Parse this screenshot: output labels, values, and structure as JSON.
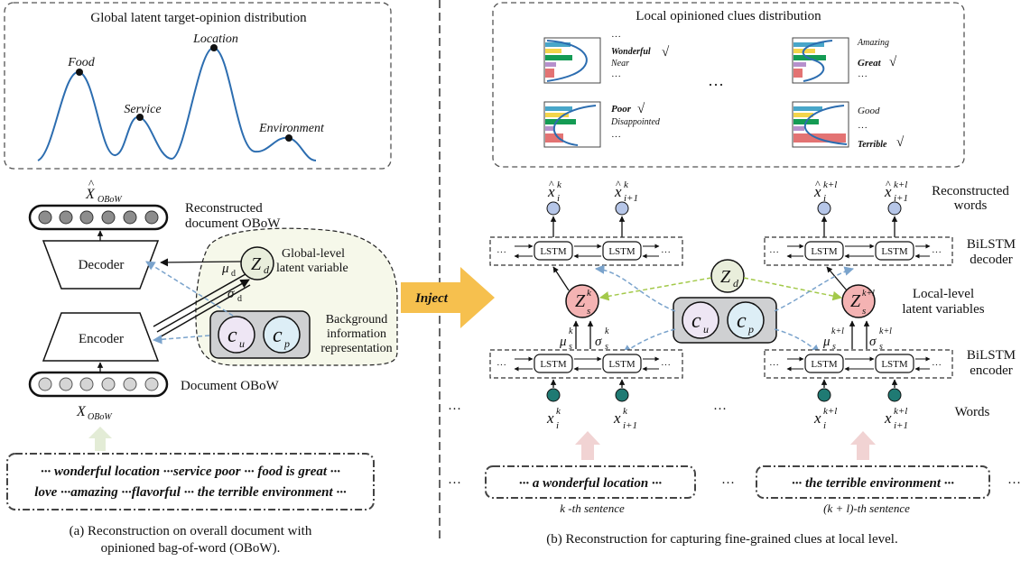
{
  "left": {
    "global_box": {
      "title": "Global latent target-opinion distribution",
      "peaks": [
        "Food",
        "Service",
        "Location",
        "Environment"
      ]
    },
    "x_hat_main": "X",
    "x_hat_sub": "OBoW",
    "reconstructed_line1": "Reconstructed",
    "reconstructed_line2": "document OBoW",
    "decoder": "Decoder",
    "encoder": "Encoder",
    "z_d_main": "Z",
    "z_d_sub": "d",
    "mu_main": "μ",
    "mu_sub": "d",
    "sigma_main": "σ",
    "sigma_sub": "d",
    "global_latent_line1": "Global-level",
    "global_latent_line2": "latent variable",
    "c_main": "c",
    "cu_sub": "u",
    "cp_sub": "p",
    "background_lines": [
      "Background",
      "information",
      "representation"
    ],
    "document_obow": "Document OBoW",
    "x_obow_main": "X",
    "x_obow_sub": "OBoW",
    "doc_text_line1": "··· wonderful location ···service poor ··· food is great ···",
    "doc_text_line2": "love ···amazing ···flavorful ··· the terrible environment ···",
    "caption_line1": "(a) Reconstruction on overall document with",
    "caption_line2": "opinioned bag-of-word (OBoW)."
  },
  "inject": "Inject",
  "right": {
    "local_box": {
      "title": "Local opinioned clues distribution",
      "panels": [
        {
          "words": [
            "Wonderful",
            "Near"
          ],
          "checked": "Wonderful"
        },
        {
          "words": [
            "Amazing",
            "Great"
          ],
          "checked": "Great"
        },
        {
          "words": [
            "Poor",
            "Disappointed"
          ],
          "checked": "Poor"
        },
        {
          "words": [
            "Good",
            "Terrible"
          ],
          "checked": "Terrible"
        }
      ],
      "check_mark": "√",
      "ellipsis": "···"
    },
    "lstm": "LSTM",
    "reconstructed_words_line1": "Reconstructed",
    "reconstructed_words_line2": "words",
    "bilstm_decoder_line1": "BiLSTM",
    "bilstm_decoder_line2": "decoder",
    "bilstm_encoder_line1": "BiLSTM",
    "bilstm_encoder_line2": "encoder",
    "local_latent_line1": "Local-level",
    "local_latent_line2": "latent variables",
    "words_label": "Words",
    "x_main": "x",
    "sup_k": "k",
    "sup_kl": "k+l",
    "sub_i": "i",
    "sub_i1": "i+1",
    "z_main": "Z",
    "z_sub": "s",
    "z_d_main": "Z",
    "z_d_sub": "d",
    "mu_main": "μ",
    "sigma_main": "σ",
    "c_main": "c",
    "cu_sub": "u",
    "cp_sub": "p",
    "sentence1": "··· a wonderful location ···",
    "sentence2": "··· the terrible environment ···",
    "sentence1_label": "k -th sentence",
    "sentence2_label": "(k + l)-th sentence",
    "ellipsis": "···",
    "caption": "(b) Reconstruction for capturing fine-grained clues at local level."
  },
  "colors": {
    "z_fill": "#f4b3b3",
    "zd_fill": "#e9eedb",
    "cu_fill": "#eee6f4",
    "cp_fill": "#ddeef6",
    "input_node": "#1f7a73",
    "output_node": "#b6c6e8",
    "inject_arrow": "#f6c04e",
    "grey_arrow": "#f1d3d3",
    "latent_panel": "#f6f8ea",
    "dashed_blue": "#7aa3cc",
    "dashed_green": "#a3c94a",
    "curve": "#2c6db0"
  }
}
